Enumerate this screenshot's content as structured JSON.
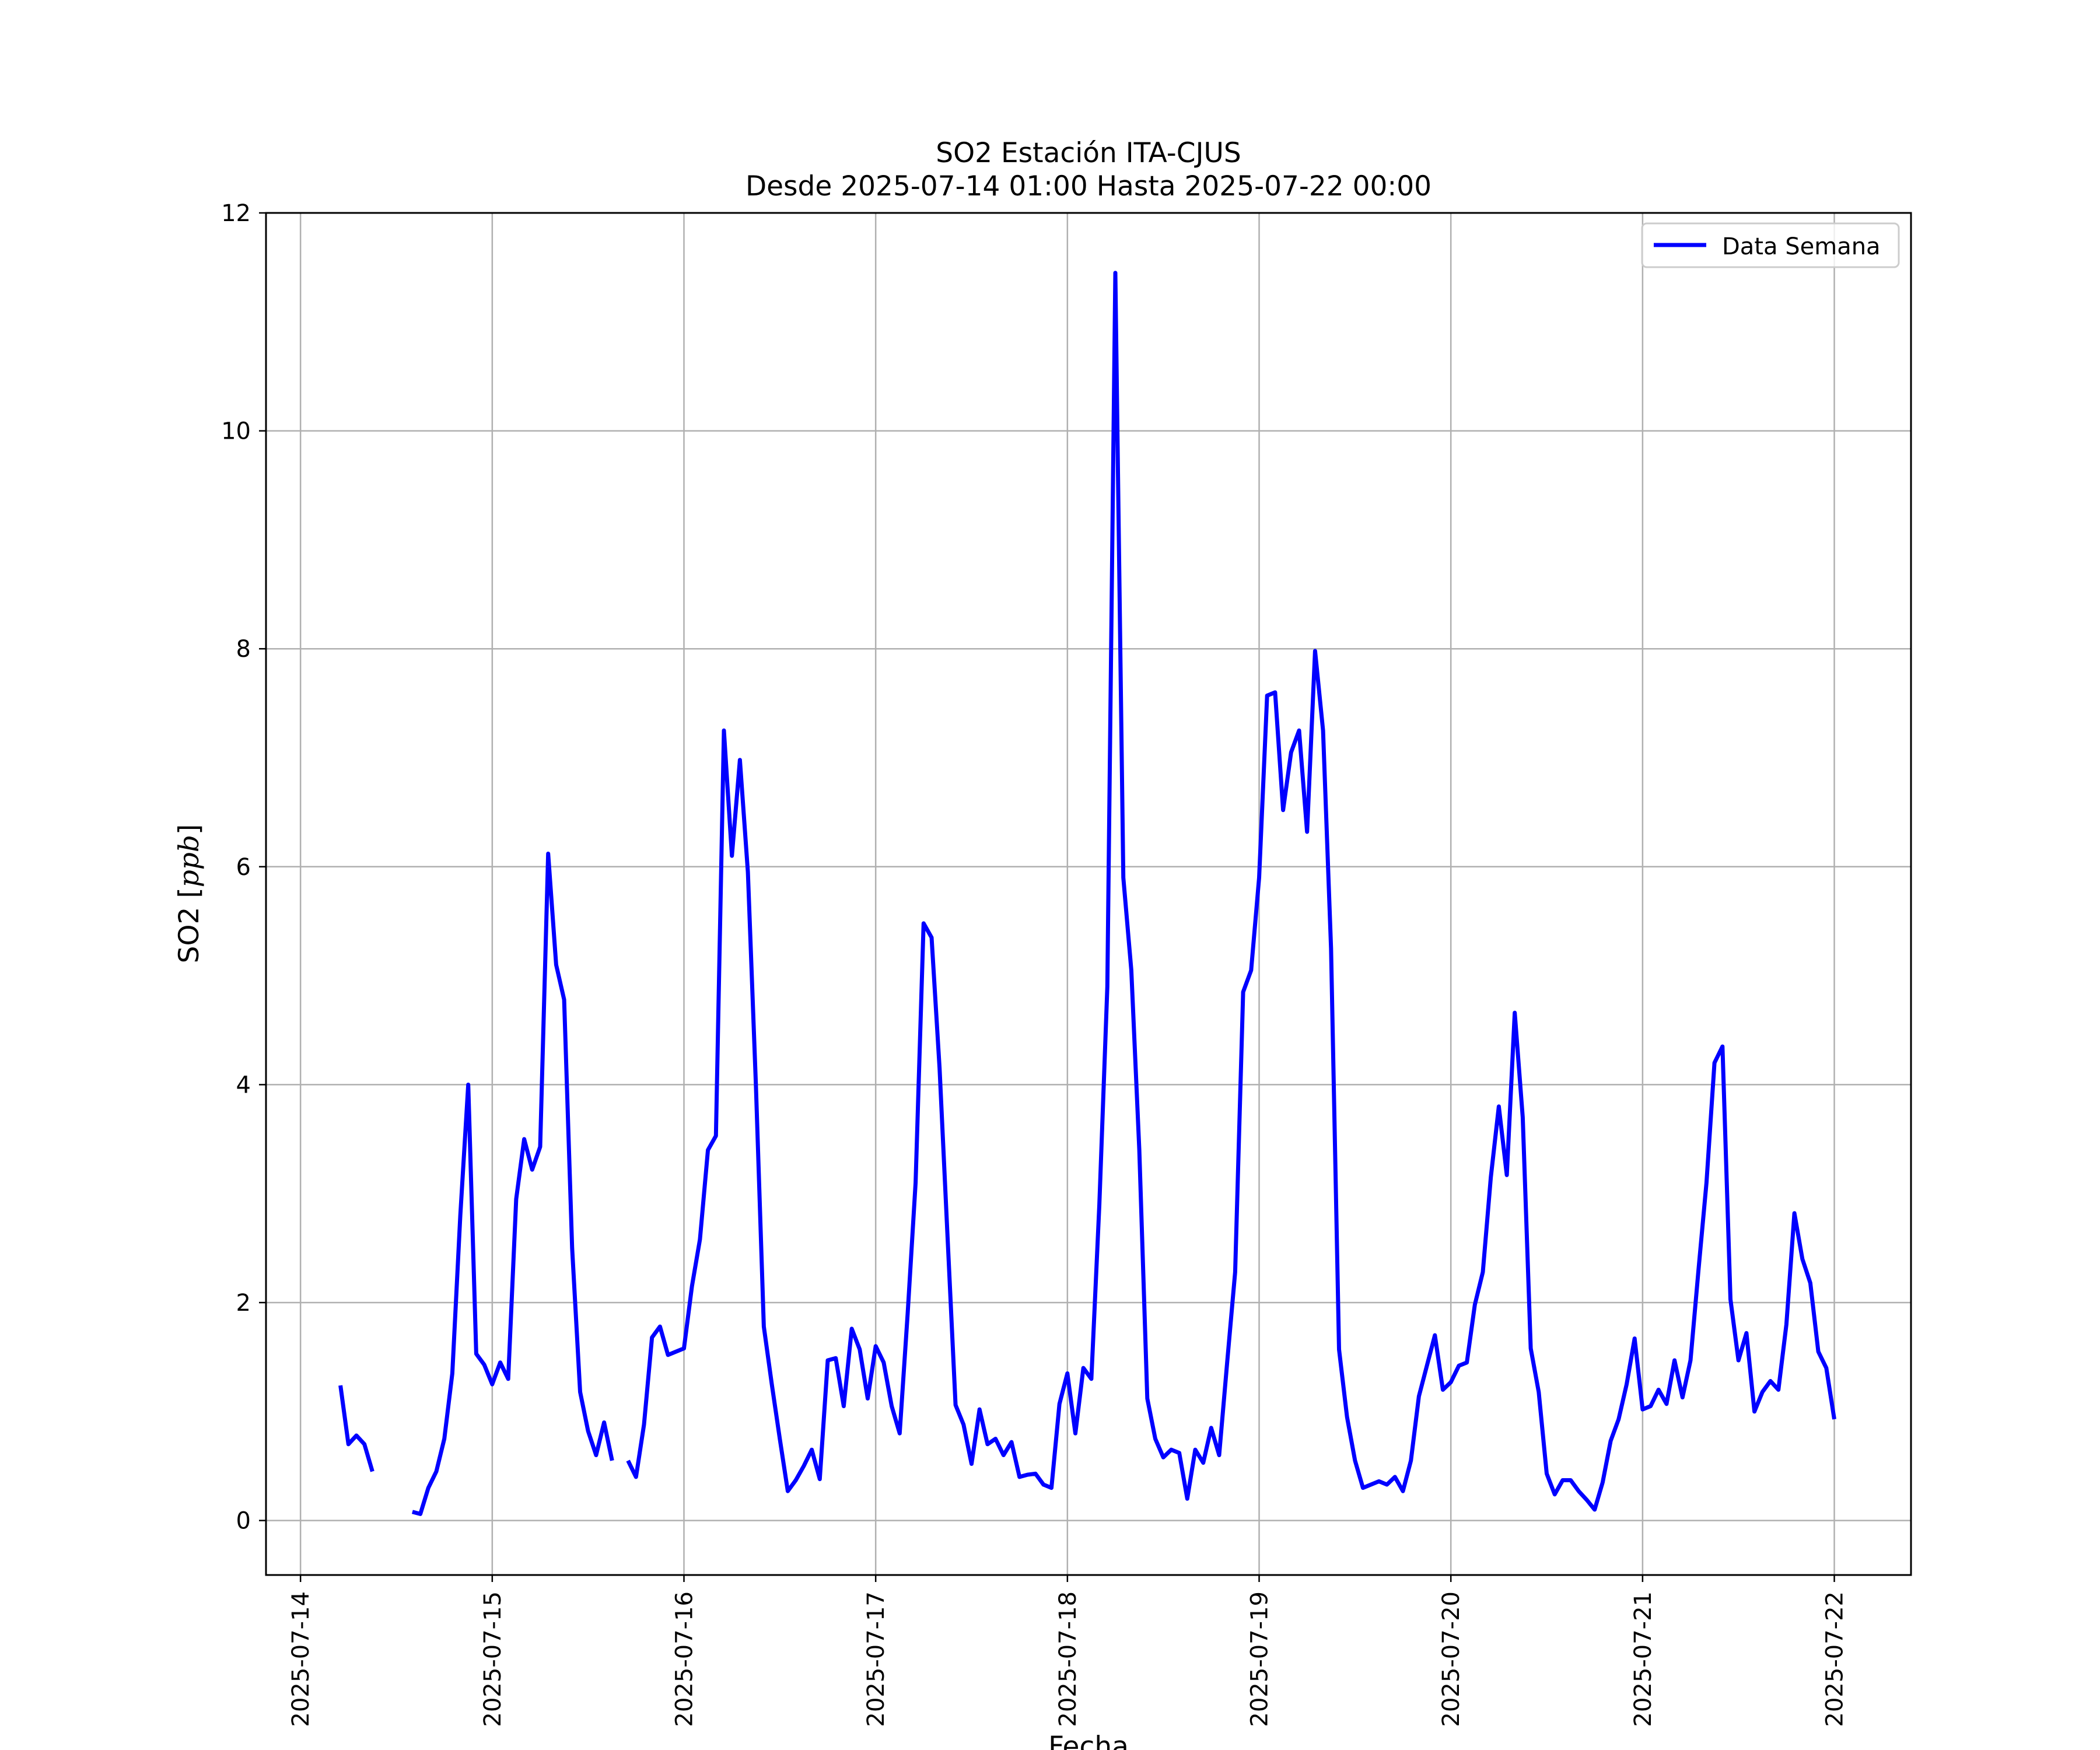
{
  "chart_data": {
    "type": "line",
    "title": "SO2 Estación ITA-CJUS",
    "subtitle": "Desde 2025-07-14 01:00 Hasta 2025-07-22 00:00",
    "xlabel": "Fecha",
    "ylabel": "SO2 [ppb]",
    "ylabel_parts": [
      "SO2 [",
      "ppb",
      "]"
    ],
    "x_start": "2025-07-14 00:00",
    "xlim_days": [
      -0.18,
      8.4
    ],
    "ylim": [
      -0.5,
      12
    ],
    "x_ticks": [
      "2025-07-14",
      "2025-07-15",
      "2025-07-16",
      "2025-07-17",
      "2025-07-18",
      "2025-07-19",
      "2025-07-20",
      "2025-07-21",
      "2025-07-22"
    ],
    "y_ticks": [
      0,
      2,
      4,
      6,
      8,
      10,
      12
    ],
    "grid": true,
    "legend_position": "top-right",
    "series": [
      {
        "name": "Data Semana",
        "color": "#0000ff",
        "points": [
          [
            "2025-07-14 05:00",
            1.24
          ],
          [
            "2025-07-14 06:00",
            0.7
          ],
          [
            "2025-07-14 07:00",
            0.78
          ],
          [
            "2025-07-14 08:00",
            0.7
          ],
          [
            "2025-07-14 09:00",
            0.45
          ],
          [
            "2025-07-14 14:00",
            0.08
          ],
          [
            "2025-07-14 15:00",
            0.06
          ],
          [
            "2025-07-14 16:00",
            0.3
          ],
          [
            "2025-07-14 17:00",
            0.45
          ],
          [
            "2025-07-14 18:00",
            0.75
          ],
          [
            "2025-07-14 19:00",
            1.35
          ],
          [
            "2025-07-14 20:00",
            2.8
          ],
          [
            "2025-07-14 21:00",
            4.0
          ],
          [
            "2025-07-14 22:00",
            1.53
          ],
          [
            "2025-07-14 23:00",
            1.43
          ],
          [
            "2025-07-15 00:00",
            1.25
          ],
          [
            "2025-07-15 01:00",
            1.45
          ],
          [
            "2025-07-15 02:00",
            1.3
          ],
          [
            "2025-07-15 03:00",
            2.95
          ],
          [
            "2025-07-15 04:00",
            3.5
          ],
          [
            "2025-07-15 05:00",
            3.22
          ],
          [
            "2025-07-15 06:00",
            3.43
          ],
          [
            "2025-07-15 07:00",
            6.12
          ],
          [
            "2025-07-15 08:00",
            5.1
          ],
          [
            "2025-07-15 09:00",
            4.78
          ],
          [
            "2025-07-15 10:00",
            2.5
          ],
          [
            "2025-07-15 11:00",
            1.18
          ],
          [
            "2025-07-15 12:00",
            0.82
          ],
          [
            "2025-07-15 13:00",
            0.6
          ],
          [
            "2025-07-15 14:00",
            0.9
          ],
          [
            "2025-07-15 15:00",
            0.55
          ],
          [
            "2025-07-15 17:00",
            0.55
          ],
          [
            "2025-07-15 18:00",
            0.4
          ],
          [
            "2025-07-15 19:00",
            0.88
          ],
          [
            "2025-07-15 20:00",
            1.68
          ],
          [
            "2025-07-15 21:00",
            1.78
          ],
          [
            "2025-07-15 22:00",
            1.52
          ],
          [
            "2025-07-15 23:00",
            1.55
          ],
          [
            "2025-07-16 00:00",
            1.58
          ],
          [
            "2025-07-16 01:00",
            2.15
          ],
          [
            "2025-07-16 02:00",
            2.58
          ],
          [
            "2025-07-16 03:00",
            3.4
          ],
          [
            "2025-07-16 04:00",
            3.53
          ],
          [
            "2025-07-16 05:00",
            7.25
          ],
          [
            "2025-07-16 06:00",
            6.1
          ],
          [
            "2025-07-16 07:00",
            6.98
          ],
          [
            "2025-07-16 08:00",
            5.95
          ],
          [
            "2025-07-16 09:00",
            4.0
          ],
          [
            "2025-07-16 10:00",
            1.78
          ],
          [
            "2025-07-16 11:00",
            1.25
          ],
          [
            "2025-07-16 12:00",
            0.75
          ],
          [
            "2025-07-16 13:00",
            0.27
          ],
          [
            "2025-07-16 14:00",
            0.37
          ],
          [
            "2025-07-16 15:00",
            0.5
          ],
          [
            "2025-07-16 16:00",
            0.65
          ],
          [
            "2025-07-16 17:00",
            0.38
          ],
          [
            "2025-07-16 18:00",
            1.47
          ],
          [
            "2025-07-16 19:00",
            1.49
          ],
          [
            "2025-07-16 20:00",
            1.05
          ],
          [
            "2025-07-16 21:00",
            1.76
          ],
          [
            "2025-07-16 22:00",
            1.57
          ],
          [
            "2025-07-16 23:00",
            1.12
          ],
          [
            "2025-07-17 00:00",
            1.6
          ],
          [
            "2025-07-17 01:00",
            1.45
          ],
          [
            "2025-07-17 02:00",
            1.05
          ],
          [
            "2025-07-17 03:00",
            0.8
          ],
          [
            "2025-07-17 04:00",
            1.9
          ],
          [
            "2025-07-17 05:00",
            3.1
          ],
          [
            "2025-07-17 06:00",
            5.48
          ],
          [
            "2025-07-17 07:00",
            5.35
          ],
          [
            "2025-07-17 08:00",
            4.15
          ],
          [
            "2025-07-17 09:00",
            2.6
          ],
          [
            "2025-07-17 10:00",
            1.06
          ],
          [
            "2025-07-17 11:00",
            0.88
          ],
          [
            "2025-07-17 12:00",
            0.52
          ],
          [
            "2025-07-17 13:00",
            1.02
          ],
          [
            "2025-07-17 14:00",
            0.7
          ],
          [
            "2025-07-17 15:00",
            0.75
          ],
          [
            "2025-07-17 16:00",
            0.6
          ],
          [
            "2025-07-17 17:00",
            0.72
          ],
          [
            "2025-07-17 18:00",
            0.4
          ],
          [
            "2025-07-17 19:00",
            0.42
          ],
          [
            "2025-07-17 20:00",
            0.43
          ],
          [
            "2025-07-17 21:00",
            0.33
          ],
          [
            "2025-07-17 22:00",
            0.3
          ],
          [
            "2025-07-17 23:00",
            1.07
          ],
          [
            "2025-07-18 00:00",
            1.35
          ],
          [
            "2025-07-18 01:00",
            0.8
          ],
          [
            "2025-07-18 02:00",
            1.4
          ],
          [
            "2025-07-18 03:00",
            1.3
          ],
          [
            "2025-07-18 04:00",
            2.9
          ],
          [
            "2025-07-18 05:00",
            4.9
          ],
          [
            "2025-07-18 06:00",
            11.45
          ],
          [
            "2025-07-18 07:00",
            5.9
          ],
          [
            "2025-07-18 08:00",
            5.05
          ],
          [
            "2025-07-18 09:00",
            3.4
          ],
          [
            "2025-07-18 10:00",
            1.12
          ],
          [
            "2025-07-18 11:00",
            0.75
          ],
          [
            "2025-07-18 12:00",
            0.58
          ],
          [
            "2025-07-18 13:00",
            0.65
          ],
          [
            "2025-07-18 14:00",
            0.62
          ],
          [
            "2025-07-18 15:00",
            0.2
          ],
          [
            "2025-07-18 16:00",
            0.65
          ],
          [
            "2025-07-18 17:00",
            0.53
          ],
          [
            "2025-07-18 18:00",
            0.85
          ],
          [
            "2025-07-18 19:00",
            0.6
          ],
          [
            "2025-07-18 20:00",
            1.45
          ],
          [
            "2025-07-18 21:00",
            2.28
          ],
          [
            "2025-07-18 22:00",
            4.85
          ],
          [
            "2025-07-18 23:00",
            5.05
          ],
          [
            "2025-07-19 00:00",
            5.9
          ],
          [
            "2025-07-19 01:00",
            7.57
          ],
          [
            "2025-07-19 02:00",
            7.6
          ],
          [
            "2025-07-19 03:00",
            6.52
          ],
          [
            "2025-07-19 04:00",
            7.05
          ],
          [
            "2025-07-19 05:00",
            7.25
          ],
          [
            "2025-07-19 06:00",
            6.32
          ],
          [
            "2025-07-19 07:00",
            7.98
          ],
          [
            "2025-07-19 08:00",
            7.25
          ],
          [
            "2025-07-19 09:00",
            5.25
          ],
          [
            "2025-07-19 10:00",
            1.57
          ],
          [
            "2025-07-19 11:00",
            0.95
          ],
          [
            "2025-07-19 12:00",
            0.55
          ],
          [
            "2025-07-19 13:00",
            0.3
          ],
          [
            "2025-07-19 14:00",
            0.33
          ],
          [
            "2025-07-19 15:00",
            0.36
          ],
          [
            "2025-07-19 16:00",
            0.33
          ],
          [
            "2025-07-19 17:00",
            0.4
          ],
          [
            "2025-07-19 18:00",
            0.27
          ],
          [
            "2025-07-19 19:00",
            0.55
          ],
          [
            "2025-07-19 20:00",
            1.14
          ],
          [
            "2025-07-19 21:00",
            1.42
          ],
          [
            "2025-07-19 22:00",
            1.7
          ],
          [
            "2025-07-19 23:00",
            1.2
          ],
          [
            "2025-07-20 00:00",
            1.27
          ],
          [
            "2025-07-20 01:00",
            1.42
          ],
          [
            "2025-07-20 02:00",
            1.45
          ],
          [
            "2025-07-20 03:00",
            1.98
          ],
          [
            "2025-07-20 04:00",
            2.28
          ],
          [
            "2025-07-20 05:00",
            3.15
          ],
          [
            "2025-07-20 06:00",
            3.8
          ],
          [
            "2025-07-20 07:00",
            3.17
          ],
          [
            "2025-07-20 08:00",
            4.66
          ],
          [
            "2025-07-20 09:00",
            3.7
          ],
          [
            "2025-07-20 10:00",
            1.58
          ],
          [
            "2025-07-20 11:00",
            1.18
          ],
          [
            "2025-07-20 12:00",
            0.43
          ],
          [
            "2025-07-20 13:00",
            0.24
          ],
          [
            "2025-07-20 14:00",
            0.37
          ],
          [
            "2025-07-20 15:00",
            0.37
          ],
          [
            "2025-07-20 16:00",
            0.27
          ],
          [
            "2025-07-20 17:00",
            0.19
          ],
          [
            "2025-07-20 18:00",
            0.1
          ],
          [
            "2025-07-20 19:00",
            0.35
          ],
          [
            "2025-07-20 20:00",
            0.73
          ],
          [
            "2025-07-20 21:00",
            0.93
          ],
          [
            "2025-07-20 22:00",
            1.25
          ],
          [
            "2025-07-20 23:00",
            1.67
          ],
          [
            "2025-07-21 00:00",
            1.02
          ],
          [
            "2025-07-21 01:00",
            1.05
          ],
          [
            "2025-07-21 02:00",
            1.2
          ],
          [
            "2025-07-21 03:00",
            1.07
          ],
          [
            "2025-07-21 04:00",
            1.47
          ],
          [
            "2025-07-21 05:00",
            1.13
          ],
          [
            "2025-07-21 06:00",
            1.47
          ],
          [
            "2025-07-21 07:00",
            2.3
          ],
          [
            "2025-07-21 08:00",
            3.1
          ],
          [
            "2025-07-21 09:00",
            4.2
          ],
          [
            "2025-07-21 10:00",
            4.35
          ],
          [
            "2025-07-21 11:00",
            2.03
          ],
          [
            "2025-07-21 12:00",
            1.47
          ],
          [
            "2025-07-21 13:00",
            1.72
          ],
          [
            "2025-07-21 14:00",
            1.0
          ],
          [
            "2025-07-21 15:00",
            1.18
          ],
          [
            "2025-07-21 16:00",
            1.28
          ],
          [
            "2025-07-21 17:00",
            1.2
          ],
          [
            "2025-07-21 18:00",
            1.8
          ],
          [
            "2025-07-21 19:00",
            2.82
          ],
          [
            "2025-07-21 20:00",
            2.4
          ],
          [
            "2025-07-21 21:00",
            2.18
          ],
          [
            "2025-07-21 22:00",
            1.55
          ],
          [
            "2025-07-21 23:00",
            1.4
          ],
          [
            "2025-07-22 00:00",
            0.93
          ]
        ]
      }
    ]
  }
}
